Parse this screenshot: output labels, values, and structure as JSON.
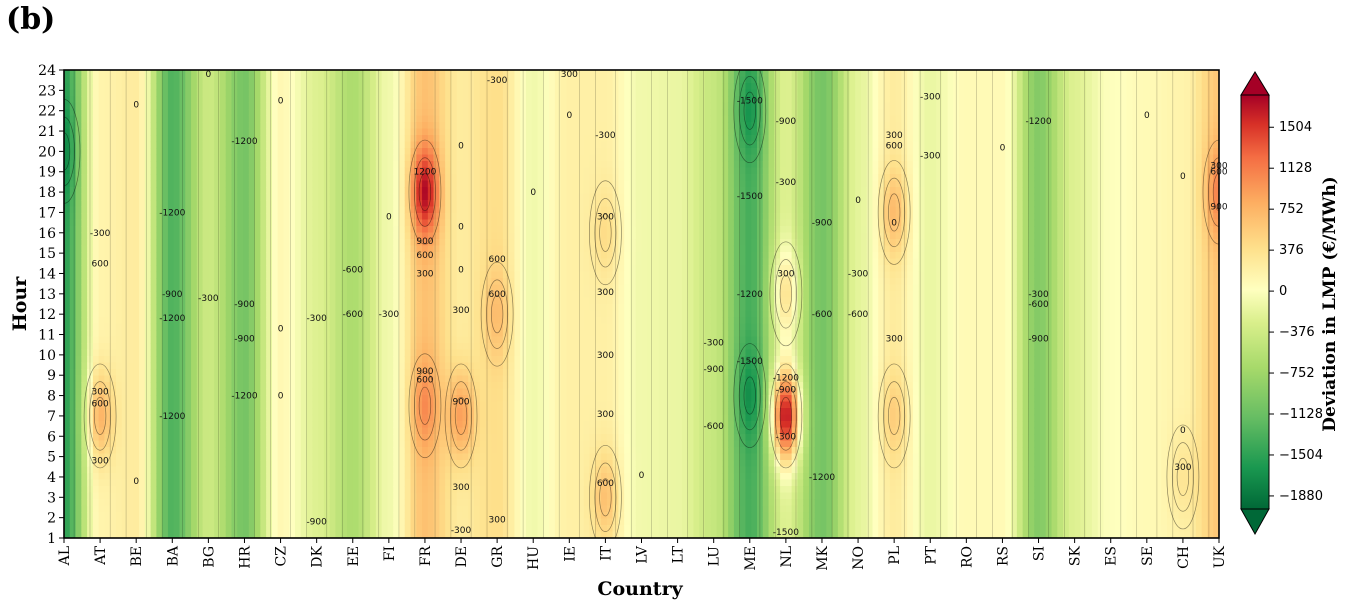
{
  "panel_label": "(b)",
  "chart_data": {
    "type": "heatmap",
    "title": "",
    "xlabel": "Country",
    "ylabel": "Hour",
    "colorbar_label": "Deviation in LMP (€/MWh)",
    "colormap": "RdYlGn_r",
    "colorbar_ticks": [
      1504,
      1128,
      752,
      376,
      0,
      -376,
      -752,
      -1128,
      -1504,
      -1880
    ],
    "value_range": [
      -2000,
      1800
    ],
    "countries": [
      "AL",
      "AT",
      "BE",
      "BA",
      "BG",
      "HR",
      "CZ",
      "DK",
      "EE",
      "FI",
      "FR",
      "DE",
      "GR",
      "HU",
      "IE",
      "IT",
      "LV",
      "LT",
      "LU",
      "ME",
      "NL",
      "MK",
      "NO",
      "PL",
      "PT",
      "RO",
      "RS",
      "SI",
      "SK",
      "ES",
      "SE",
      "CH",
      "UK"
    ],
    "hours": [
      1,
      2,
      3,
      4,
      5,
      6,
      7,
      8,
      9,
      10,
      11,
      12,
      13,
      14,
      15,
      16,
      17,
      18,
      19,
      20,
      21,
      22,
      23,
      24
    ],
    "hour_ticks": [
      1,
      2,
      3,
      4,
      5,
      6,
      7,
      8,
      9,
      10,
      11,
      12,
      13,
      14,
      15,
      16,
      17,
      18,
      19,
      20,
      21,
      22,
      23,
      24
    ],
    "country_baseline": {
      "AL": -1500,
      "AT": 150,
      "BE": 250,
      "BA": -1300,
      "BG": -400,
      "HR": -1050,
      "CZ": 100,
      "DK": -250,
      "EE": -650,
      "FI": -100,
      "FR": 650,
      "DE": 250,
      "GR": 400,
      "HU": -100,
      "IE": 200,
      "IT": 200,
      "LV": -100,
      "LT": -150,
      "LU": -450,
      "ME": -1350,
      "NL": -250,
      "MK": -1050,
      "NO": -200,
      "PL": 250,
      "PT": -150,
      "RO": 80,
      "RS": 80,
      "SI": -950,
      "SK": -250,
      "ES": 0,
      "SE": 80,
      "CH": 150,
      "UK": 600
    },
    "hotspots": [
      {
        "country": "FR",
        "hour": 18,
        "value": 1750
      },
      {
        "country": "FR",
        "hour": 7.5,
        "value": 1050
      },
      {
        "country": "DE",
        "hour": 7,
        "value": 900
      },
      {
        "country": "AT",
        "hour": 7,
        "value": 750
      },
      {
        "country": "GR",
        "hour": 12,
        "value": 700
      },
      {
        "country": "NL",
        "hour": 7,
        "value": 1700
      },
      {
        "country": "NL",
        "hour": 13,
        "value": 350
      },
      {
        "country": "PL",
        "hour": 17,
        "value": 700
      },
      {
        "country": "PL",
        "hour": 7,
        "value": 550
      },
      {
        "country": "IT",
        "hour": 16,
        "value": 420
      },
      {
        "country": "IT",
        "hour": 3,
        "value": 650
      },
      {
        "country": "UK",
        "hour": 18,
        "value": 1100
      },
      {
        "country": "CH",
        "hour": 4,
        "value": 320
      },
      {
        "country": "ME",
        "hour": 8,
        "value": -1700
      },
      {
        "country": "ME",
        "hour": 22,
        "value": -1650
      },
      {
        "country": "AL",
        "hour": 20,
        "value": -1750
      }
    ],
    "contour_labels": [
      {
        "text": "300",
        "country": "AT",
        "hour": 8.2
      },
      {
        "text": "600",
        "country": "AT",
        "hour": 7.6
      },
      {
        "text": "300",
        "country": "AT",
        "hour": 4.8
      },
      {
        "text": "600",
        "country": "AT",
        "hour": 14.5
      },
      {
        "text": "-300",
        "country": "AT",
        "hour": 16.0
      },
      {
        "text": "0",
        "country": "BE",
        "hour": 22.3
      },
      {
        "text": "0",
        "country": "BE",
        "hour": 3.8
      },
      {
        "text": "-1200",
        "country": "BA",
        "hour": 17.0
      },
      {
        "text": "-1200",
        "country": "BA",
        "hour": 11.8
      },
      {
        "text": "-1200",
        "country": "BA",
        "hour": 7.0
      },
      {
        "text": "-900",
        "country": "BA",
        "hour": 13.0
      },
      {
        "text": "0",
        "country": "BG",
        "hour": 23.8
      },
      {
        "text": "-300",
        "country": "BG",
        "hour": 12.8
      },
      {
        "text": "-1200",
        "country": "HR",
        "hour": 20.5
      },
      {
        "text": "-900",
        "country": "HR",
        "hour": 12.5
      },
      {
        "text": "-900",
        "country": "HR",
        "hour": 10.8
      },
      {
        "text": "-1200",
        "country": "HR",
        "hour": 8.0
      },
      {
        "text": "0",
        "country": "CZ",
        "hour": 22.5
      },
      {
        "text": "0",
        "country": "CZ",
        "hour": 11.3
      },
      {
        "text": "0",
        "country": "CZ",
        "hour": 8.0
      },
      {
        "text": "-300",
        "country": "DK",
        "hour": 11.8
      },
      {
        "text": "-900",
        "country": "DK",
        "hour": 1.8
      },
      {
        "text": "-600",
        "country": "EE",
        "hour": 14.2
      },
      {
        "text": "-600",
        "country": "EE",
        "hour": 12.0
      },
      {
        "text": "-300",
        "country": "FI",
        "hour": 12.0
      },
      {
        "text": "0",
        "country": "FI",
        "hour": 16.8
      },
      {
        "text": "1200",
        "country": "FR",
        "hour": 19.0
      },
      {
        "text": "900",
        "country": "FR",
        "hour": 15.6
      },
      {
        "text": "600",
        "country": "FR",
        "hour": 14.9
      },
      {
        "text": "300",
        "country": "FR",
        "hour": 14.0
      },
      {
        "text": "900",
        "country": "FR",
        "hour": 9.2
      },
      {
        "text": "600",
        "country": "FR",
        "hour": 8.8
      },
      {
        "text": "900",
        "country": "DE",
        "hour": 7.7
      },
      {
        "text": "0",
        "country": "DE",
        "hour": 14.2
      },
      {
        "text": "0",
        "country": "DE",
        "hour": 16.3
      },
      {
        "text": "0",
        "country": "DE",
        "hour": 20.3
      },
      {
        "text": "300",
        "country": "DE",
        "hour": 12.2
      },
      {
        "text": "-300",
        "country": "DE",
        "hour": 1.4
      },
      {
        "text": "300",
        "country": "DE",
        "hour": 3.5
      },
      {
        "text": "-300",
        "country": "GR",
        "hour": 23.5
      },
      {
        "text": "600",
        "country": "GR",
        "hour": 14.7
      },
      {
        "text": "600",
        "country": "GR",
        "hour": 13.0
      },
      {
        "text": "300",
        "country": "GR",
        "hour": 1.9
      },
      {
        "text": "0",
        "country": "HU",
        "hour": 18.0
      },
      {
        "text": "300",
        "country": "IE",
        "hour": 23.8
      },
      {
        "text": "0",
        "country": "IE",
        "hour": 21.8
      },
      {
        "text": "-300",
        "country": "IT",
        "hour": 20.8
      },
      {
        "text": "300",
        "country": "IT",
        "hour": 16.8
      },
      {
        "text": "300",
        "country": "IT",
        "hour": 13.1
      },
      {
        "text": "300",
        "country": "IT",
        "hour": 10.0
      },
      {
        "text": "300",
        "country": "IT",
        "hour": 7.1
      },
      {
        "text": "600",
        "country": "IT",
        "hour": 3.7
      },
      {
        "text": "0",
        "country": "LV",
        "hour": 4.1
      },
      {
        "text": "-300",
        "country": "LU",
        "hour": 10.6
      },
      {
        "text": "-600",
        "country": "LU",
        "hour": 6.5
      },
      {
        "text": "-900",
        "country": "LU",
        "hour": 9.3
      },
      {
        "text": "-1500",
        "country": "ME",
        "hour": 22.5
      },
      {
        "text": "-1500",
        "country": "ME",
        "hour": 17.8
      },
      {
        "text": "-1500",
        "country": "ME",
        "hour": 9.7
      },
      {
        "text": "-1200",
        "country": "ME",
        "hour": 13.0
      },
      {
        "text": "-900",
        "country": "NL",
        "hour": 21.5
      },
      {
        "text": "-300",
        "country": "NL",
        "hour": 18.5
      },
      {
        "text": "300",
        "country": "NL",
        "hour": 14.0
      },
      {
        "text": "-1200",
        "country": "NL",
        "hour": 8.9
      },
      {
        "text": "-900",
        "country": "NL",
        "hour": 8.3
      },
      {
        "text": "-300",
        "country": "NL",
        "hour": 6.0
      },
      {
        "text": "-1500",
        "country": "NL",
        "hour": 1.3
      },
      {
        "text": "-900",
        "country": "MK",
        "hour": 16.5
      },
      {
        "text": "-1200",
        "country": "MK",
        "hour": 4.0
      },
      {
        "text": "-600",
        "country": "MK",
        "hour": 12.0
      },
      {
        "text": "0",
        "country": "NO",
        "hour": 17.6
      },
      {
        "text": "-600",
        "country": "NO",
        "hour": 12.0
      },
      {
        "text": "-300",
        "country": "NO",
        "hour": 14.0
      },
      {
        "text": "300",
        "country": "PL",
        "hour": 20.8
      },
      {
        "text": "600",
        "country": "PL",
        "hour": 20.3
      },
      {
        "text": "300",
        "country": "PL",
        "hour": 10.8
      },
      {
        "text": "0",
        "country": "PL",
        "hour": 16.5
      },
      {
        "text": "-300",
        "country": "PT",
        "hour": 22.7
      },
      {
        "text": "-300",
        "country": "PT",
        "hour": 19.8
      },
      {
        "text": "0",
        "country": "RS",
        "hour": 20.2
      },
      {
        "text": "-1200",
        "country": "SI",
        "hour": 21.5
      },
      {
        "text": "-900",
        "country": "SI",
        "hour": 10.8
      },
      {
        "text": "-600",
        "country": "SI",
        "hour": 12.5
      },
      {
        "text": "-300",
        "country": "SI",
        "hour": 13.0
      },
      {
        "text": "0",
        "country": "SE",
        "hour": 21.8
      },
      {
        "text": "0",
        "country": "CH",
        "hour": 18.8
      },
      {
        "text": "300",
        "country": "CH",
        "hour": 4.5
      },
      {
        "text": "0",
        "country": "CH",
        "hour": 6.3
      },
      {
        "text": "300",
        "country": "UK",
        "hour": 19.3
      },
      {
        "text": "600",
        "country": "UK",
        "hour": 19.0
      },
      {
        "text": "900",
        "country": "UK",
        "hour": 17.3
      }
    ]
  }
}
